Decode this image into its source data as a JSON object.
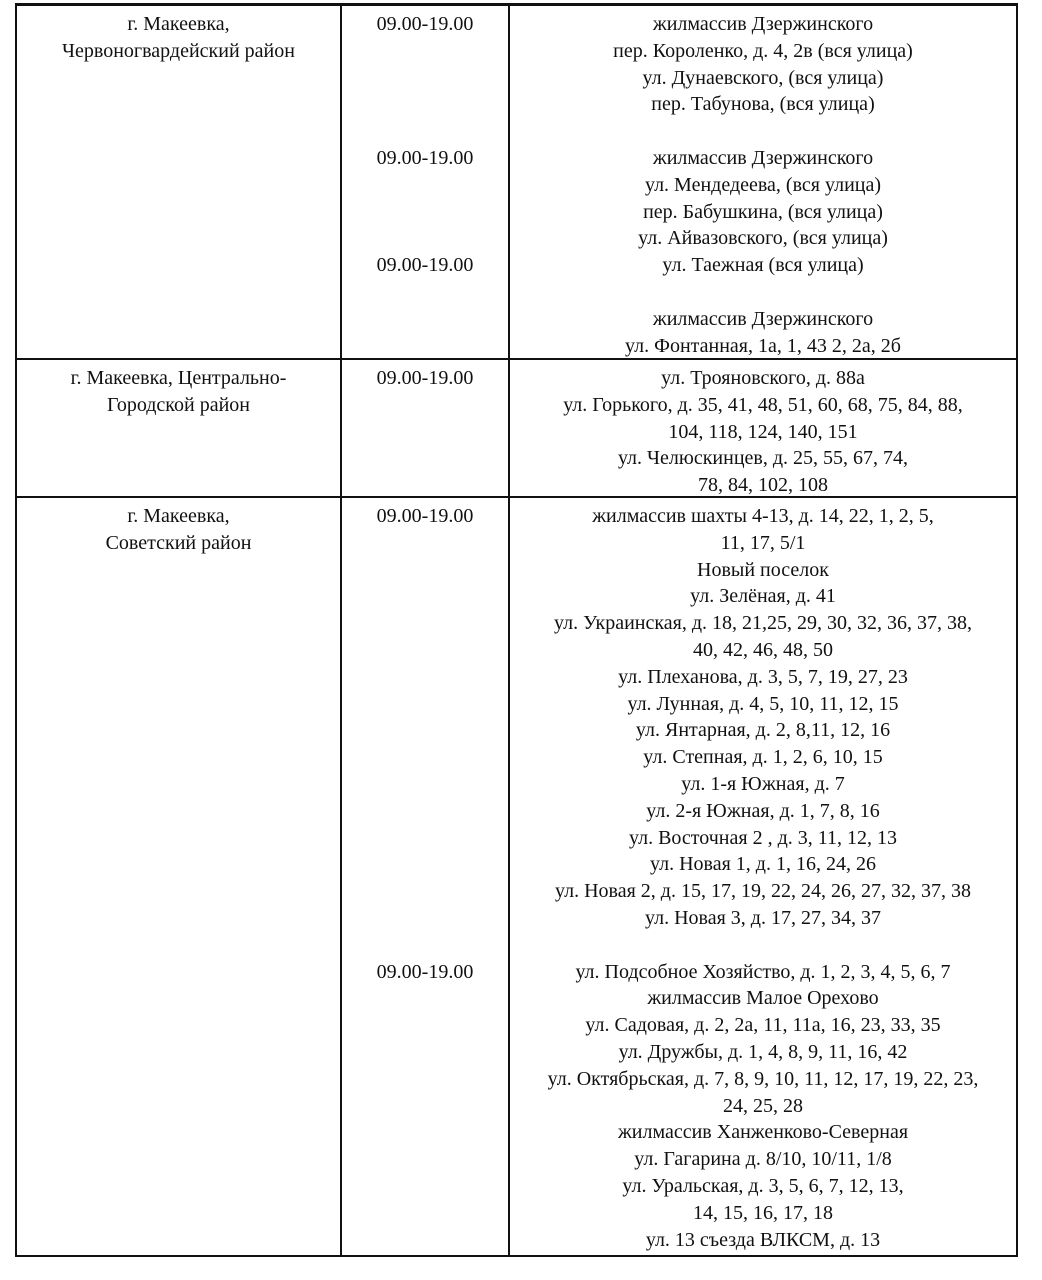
{
  "rows": [
    {
      "district": [
        "г. Макеевка,",
        "Червоногвардейский район"
      ],
      "time": [
        "09.00-19.00",
        "",
        "",
        "",
        "",
        "09.00-19.00",
        "",
        "",
        "",
        "09.00-19.00"
      ],
      "addresses": [
        "жилмассив Дзержинского",
        "пер. Короленко, д. 4, 2в (вся улица)",
        "ул. Дунаевского, (вся улица)",
        "пер. Табунова, (вся улица)",
        "",
        "жилмассив Дзержинского",
        "ул. Мендедеева, (вся улица)",
        "пер. Бабушкина, (вся улица)",
        "ул. Айвазовского, (вся улица)",
        "ул. Таежная (вся улица)",
        "",
        "жилмассив Дзержинского",
        "ул. Фонтанная, 1а, 1, 43 2, 2а, 2б"
      ]
    },
    {
      "district": [
        "г. Макеевка, Центрально-",
        "Городской район"
      ],
      "time": [
        "09.00-19.00"
      ],
      "addresses": [
        "ул. Трояновского, д. 88а",
        "ул. Горького, д. 35, 41, 48, 51, 60, 68, 75, 84, 88,",
        "104, 118, 124, 140, 151",
        "ул. Челюскинцев, д. 25, 55, 67, 74,",
        "78, 84, 102, 108"
      ]
    },
    {
      "district": [
        "г. Макеевка,",
        "Советский район"
      ],
      "time": [
        "09.00-19.00",
        "",
        "",
        "",
        "",
        "",
        "",
        "",
        "",
        "",
        "",
        "",
        "",
        "",
        "",
        "",
        "",
        "09.00-19.00"
      ],
      "addresses": [
        "жилмассив шахты 4-13, д. 14, 22, 1, 2, 5,",
        "11, 17, 5/1",
        "Новый поселок",
        "ул. Зелёная, д. 41",
        "ул. Украинская, д. 18, 21,25, 29, 30, 32, 36, 37, 38,",
        "40, 42, 46, 48, 50",
        "ул. Плеханова, д. 3, 5, 7, 19, 27, 23",
        "ул. Лунная, д. 4, 5, 10, 11, 12, 15",
        "ул. Янтарная, д. 2, 8,11, 12, 16",
        "ул. Степная, д. 1, 2, 6, 10, 15",
        "ул. 1-я Южная, д. 7",
        "ул. 2-я Южная, д. 1, 7, 8, 16",
        "ул. Восточная 2 , д. 3, 11, 12, 13",
        "ул. Новая 1, д. 1, 16, 24, 26",
        "ул. Новая 2, д. 15, 17, 19, 22, 24, 26, 27, 32, 37, 38",
        "ул. Новая 3, д. 17, 27, 34, 37",
        "",
        "ул. Подсобное Хозяйство, д. 1, 2, 3, 4, 5, 6, 7",
        "жилмассив Малое Орехово",
        "ул. Садовая, д. 2, 2а, 11, 11а, 16, 23, 33, 35",
        "ул. Дружбы, д. 1, 4, 8, 9, 11, 16, 42",
        "ул. Октябрьская, д. 7, 8, 9, 10, 11, 12, 17, 19, 22, 23,",
        "24, 25, 28",
        "жилмассив Ханженково-Северная",
        "ул. Гагарина д. 8/10, 10/11, 1/8",
        "ул. Уральская, д. 3, 5, 6, 7, 12, 13,",
        "14, 15, 16, 17, 18",
        "ул. 13 съезда ВЛКСМ, д. 13"
      ]
    }
  ]
}
